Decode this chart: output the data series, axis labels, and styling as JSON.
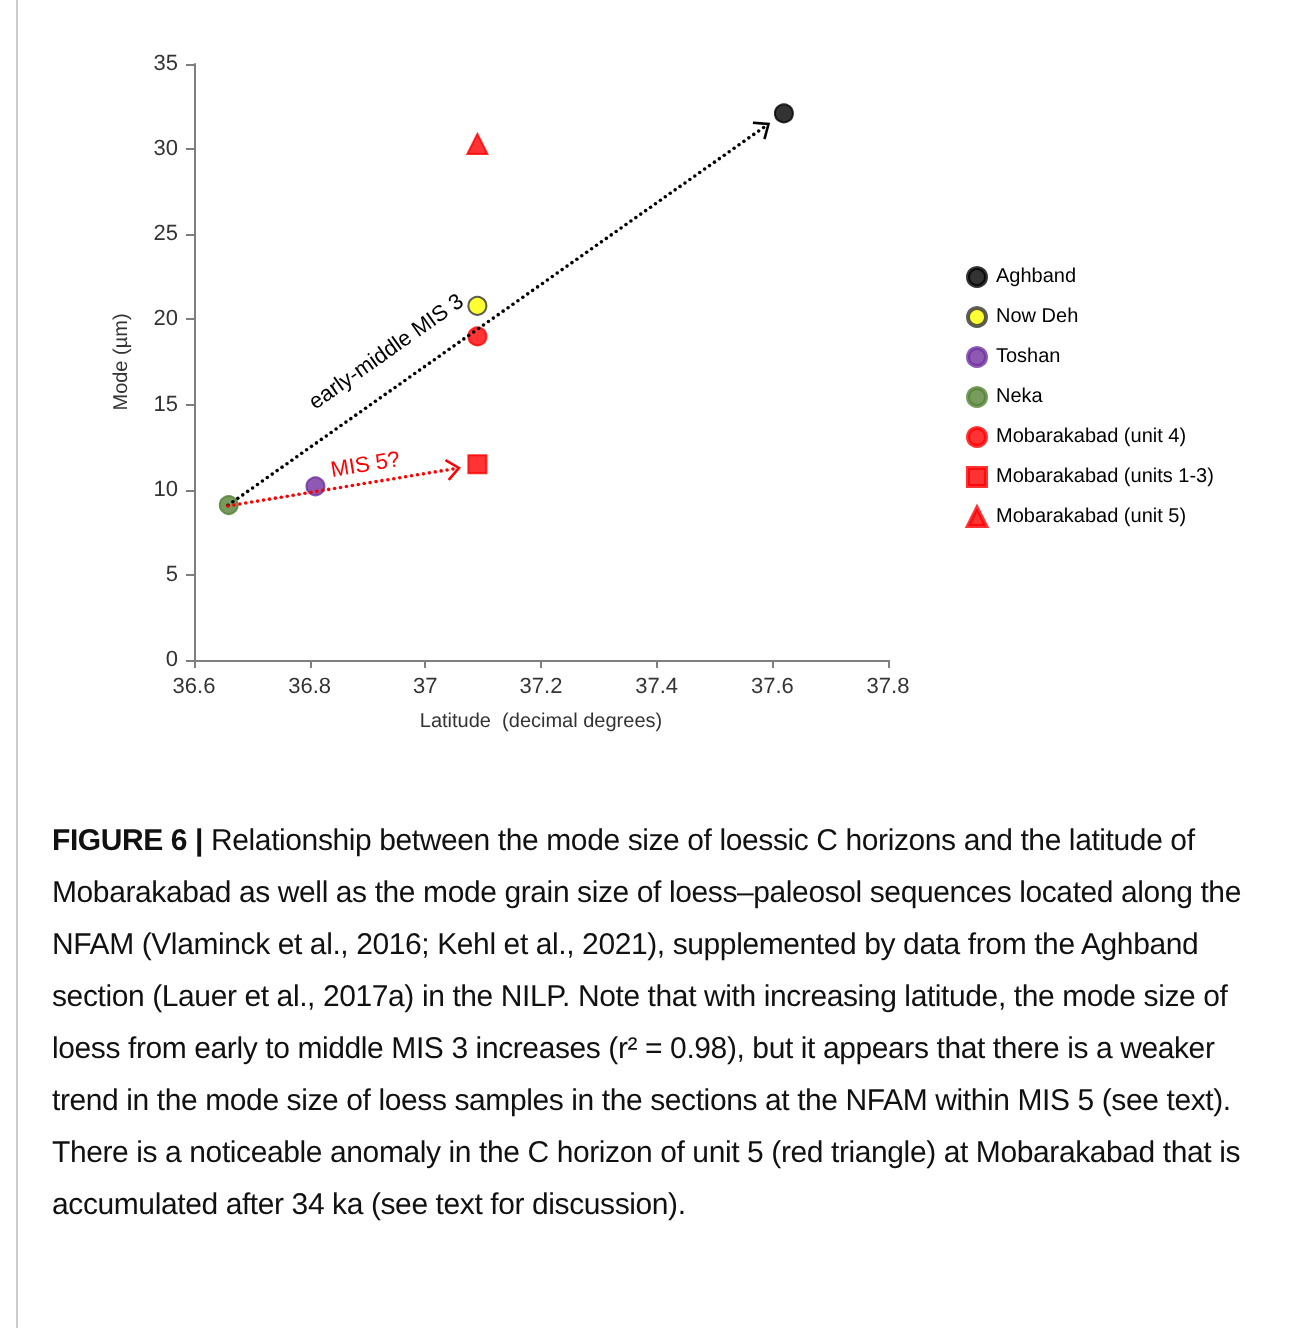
{
  "chart_data": {
    "type": "scatter",
    "xlabel": "Latitude  (decimal degrees)",
    "ylabel": "Mode (µm)",
    "xlim": [
      36.6,
      37.8
    ],
    "xticks": [
      36.6,
      36.8,
      37,
      37.2,
      37.4,
      37.6,
      37.8
    ],
    "ylim": [
      0,
      35
    ],
    "yticks": [
      0,
      5,
      10,
      15,
      20,
      25,
      30,
      35
    ],
    "grid": false,
    "legend": "right",
    "series": [
      {
        "name": "Aghband",
        "color": "#000000",
        "marker": "circle",
        "x": [
          37.62
        ],
        "values": [
          32.1
        ]
      },
      {
        "name": "Now Deh",
        "color": "#ffff00",
        "marker": "circle",
        "x": [
          37.09
        ],
        "values": [
          20.8
        ]
      },
      {
        "name": "Toshan",
        "color": "#7030a0",
        "marker": "circle",
        "x": [
          36.81
        ],
        "values": [
          10.2
        ]
      },
      {
        "name": "Neka",
        "color": "#548235",
        "marker": "circle",
        "x": [
          36.66
        ],
        "values": [
          9.1
        ]
      },
      {
        "name": "Mobarakabad (unit 4)",
        "color": "#ff0000",
        "marker": "circle",
        "x": [
          37.09
        ],
        "values": [
          19.0
        ]
      },
      {
        "name": "Mobarakabad (units 1-3)",
        "color": "#ff0000",
        "marker": "square",
        "x": [
          37.09
        ],
        "values": [
          11.5
        ]
      },
      {
        "name": "Mobarakabad (unit 5)",
        "color": "#ff0000",
        "marker": "triangle",
        "x": [
          37.09
        ],
        "values": [
          30.3
        ]
      }
    ],
    "annotations": [
      "early-middle MIS 3",
      "MIS 5?",
      "FIGURE 6 | Relationship between the mode size of loessic C horizons and the latitude of Mobarakabad as well as the mode grain size of loess–paleosol sequences located along the NFAM (Vlaminck et al., 2016; Kehl et al., 2021), supplemented by data from the Aghband section (Lauer et al., 2017a) in the NILP. Note that with increasing latitude, the mode size of loess from early to middle MIS 3 increases (r² = 0.98), but it appears that there is a weaker trend in the mode size of loess samples in the sections at the NFAM within MIS 5 (see text). There is a noticeable anomaly in the C horizon of unit 5 (red triangle) at Mobarakabad that is accumulated after 34 ka (see text for discussion)."
    ]
  }
}
